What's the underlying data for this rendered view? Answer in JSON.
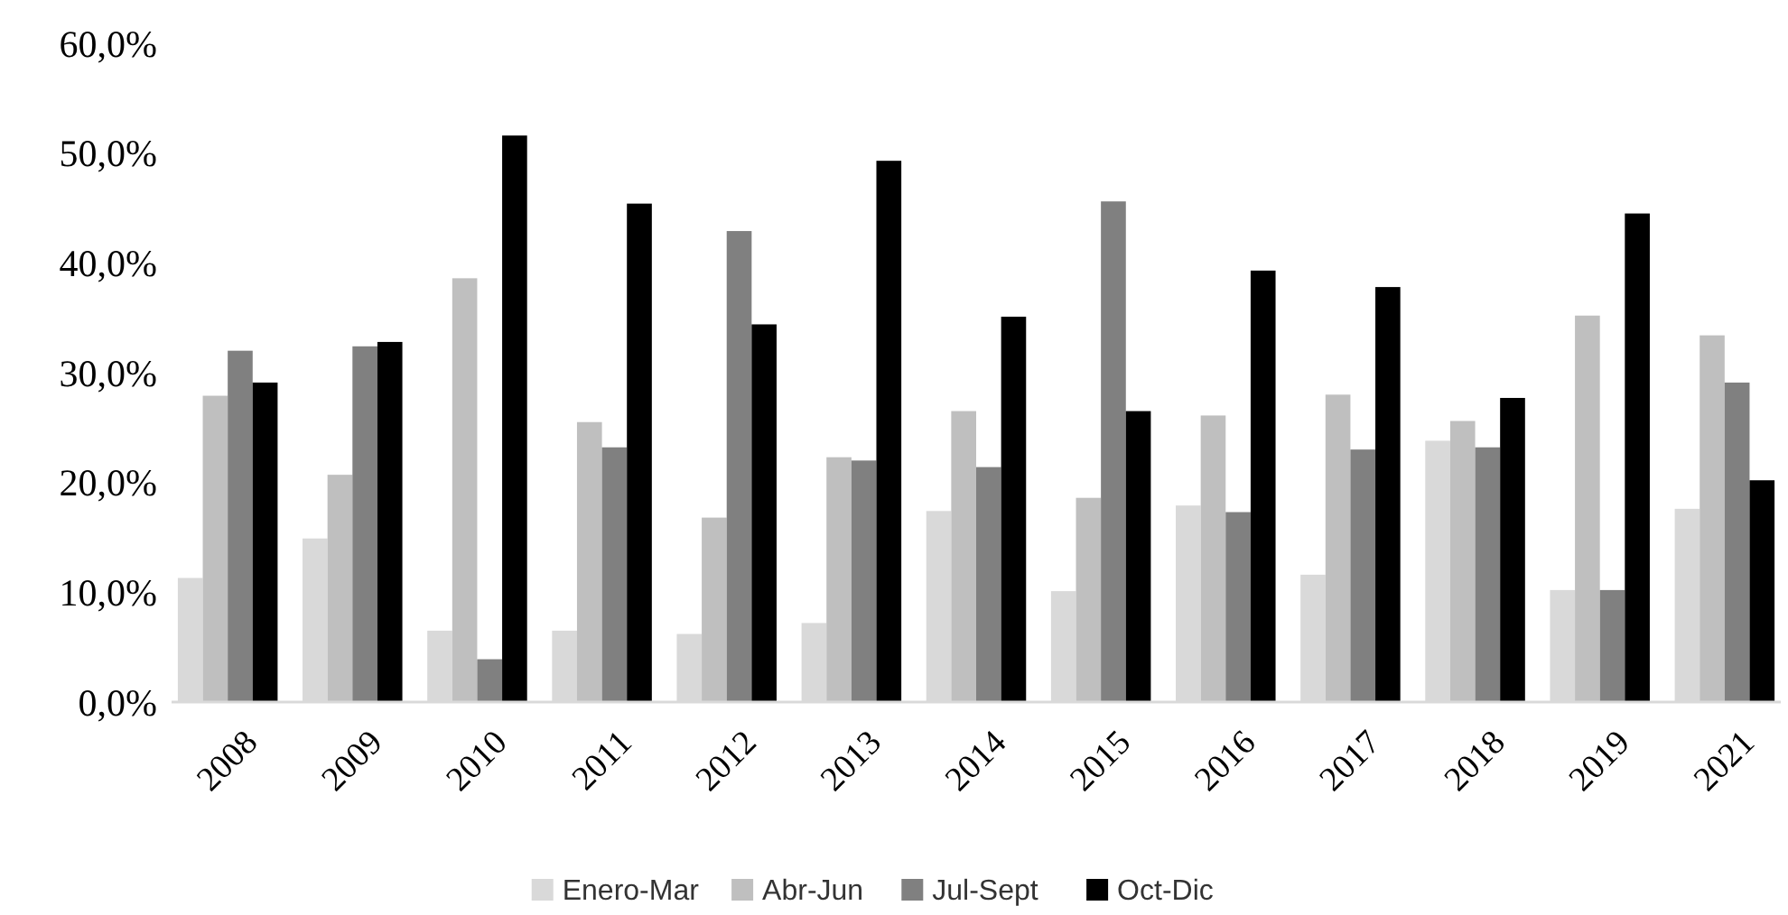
{
  "chart_data": {
    "type": "bar",
    "categories": [
      "2008",
      "2009",
      "2010",
      "2011",
      "2012",
      "2013",
      "2014",
      "2015",
      "2016",
      "2017",
      "2018",
      "2019",
      "2021"
    ],
    "series": [
      {
        "name": "Enero-Mar",
        "color": "#d9d9d9",
        "values": [
          11.3,
          14.9,
          6.5,
          6.5,
          6.2,
          7.2,
          17.4,
          10.1,
          17.9,
          11.6,
          23.8,
          10.2,
          17.6
        ]
      },
      {
        "name": "Abr-Jun",
        "color": "#bfbfbf",
        "values": [
          27.9,
          20.7,
          38.6,
          25.5,
          16.8,
          22.3,
          26.5,
          18.6,
          26.1,
          28.0,
          25.6,
          35.2,
          33.4
        ]
      },
      {
        "name": "Jul-Sept",
        "color": "#808080",
        "values": [
          32.0,
          32.4,
          3.9,
          23.2,
          42.9,
          22.0,
          21.4,
          45.6,
          17.3,
          23.0,
          23.2,
          10.2,
          29.1
        ]
      },
      {
        "name": "Oct-Dic",
        "color": "#000000",
        "values": [
          29.1,
          32.8,
          51.6,
          45.4,
          34.4,
          49.3,
          35.1,
          26.5,
          39.3,
          37.8,
          27.7,
          44.5,
          20.2
        ]
      }
    ],
    "ylim": [
      0,
      60
    ],
    "yticks": [
      {
        "value": 0,
        "label": "0,0%"
      },
      {
        "value": 10,
        "label": "10,0%"
      },
      {
        "value": 20,
        "label": "20,0%"
      },
      {
        "value": 30,
        "label": "30,0%"
      },
      {
        "value": 40,
        "label": "40,0%"
      },
      {
        "value": 50,
        "label": "50,0%"
      },
      {
        "value": 60,
        "label": "60,0%"
      }
    ],
    "grid": false,
    "legend": "bottom"
  }
}
